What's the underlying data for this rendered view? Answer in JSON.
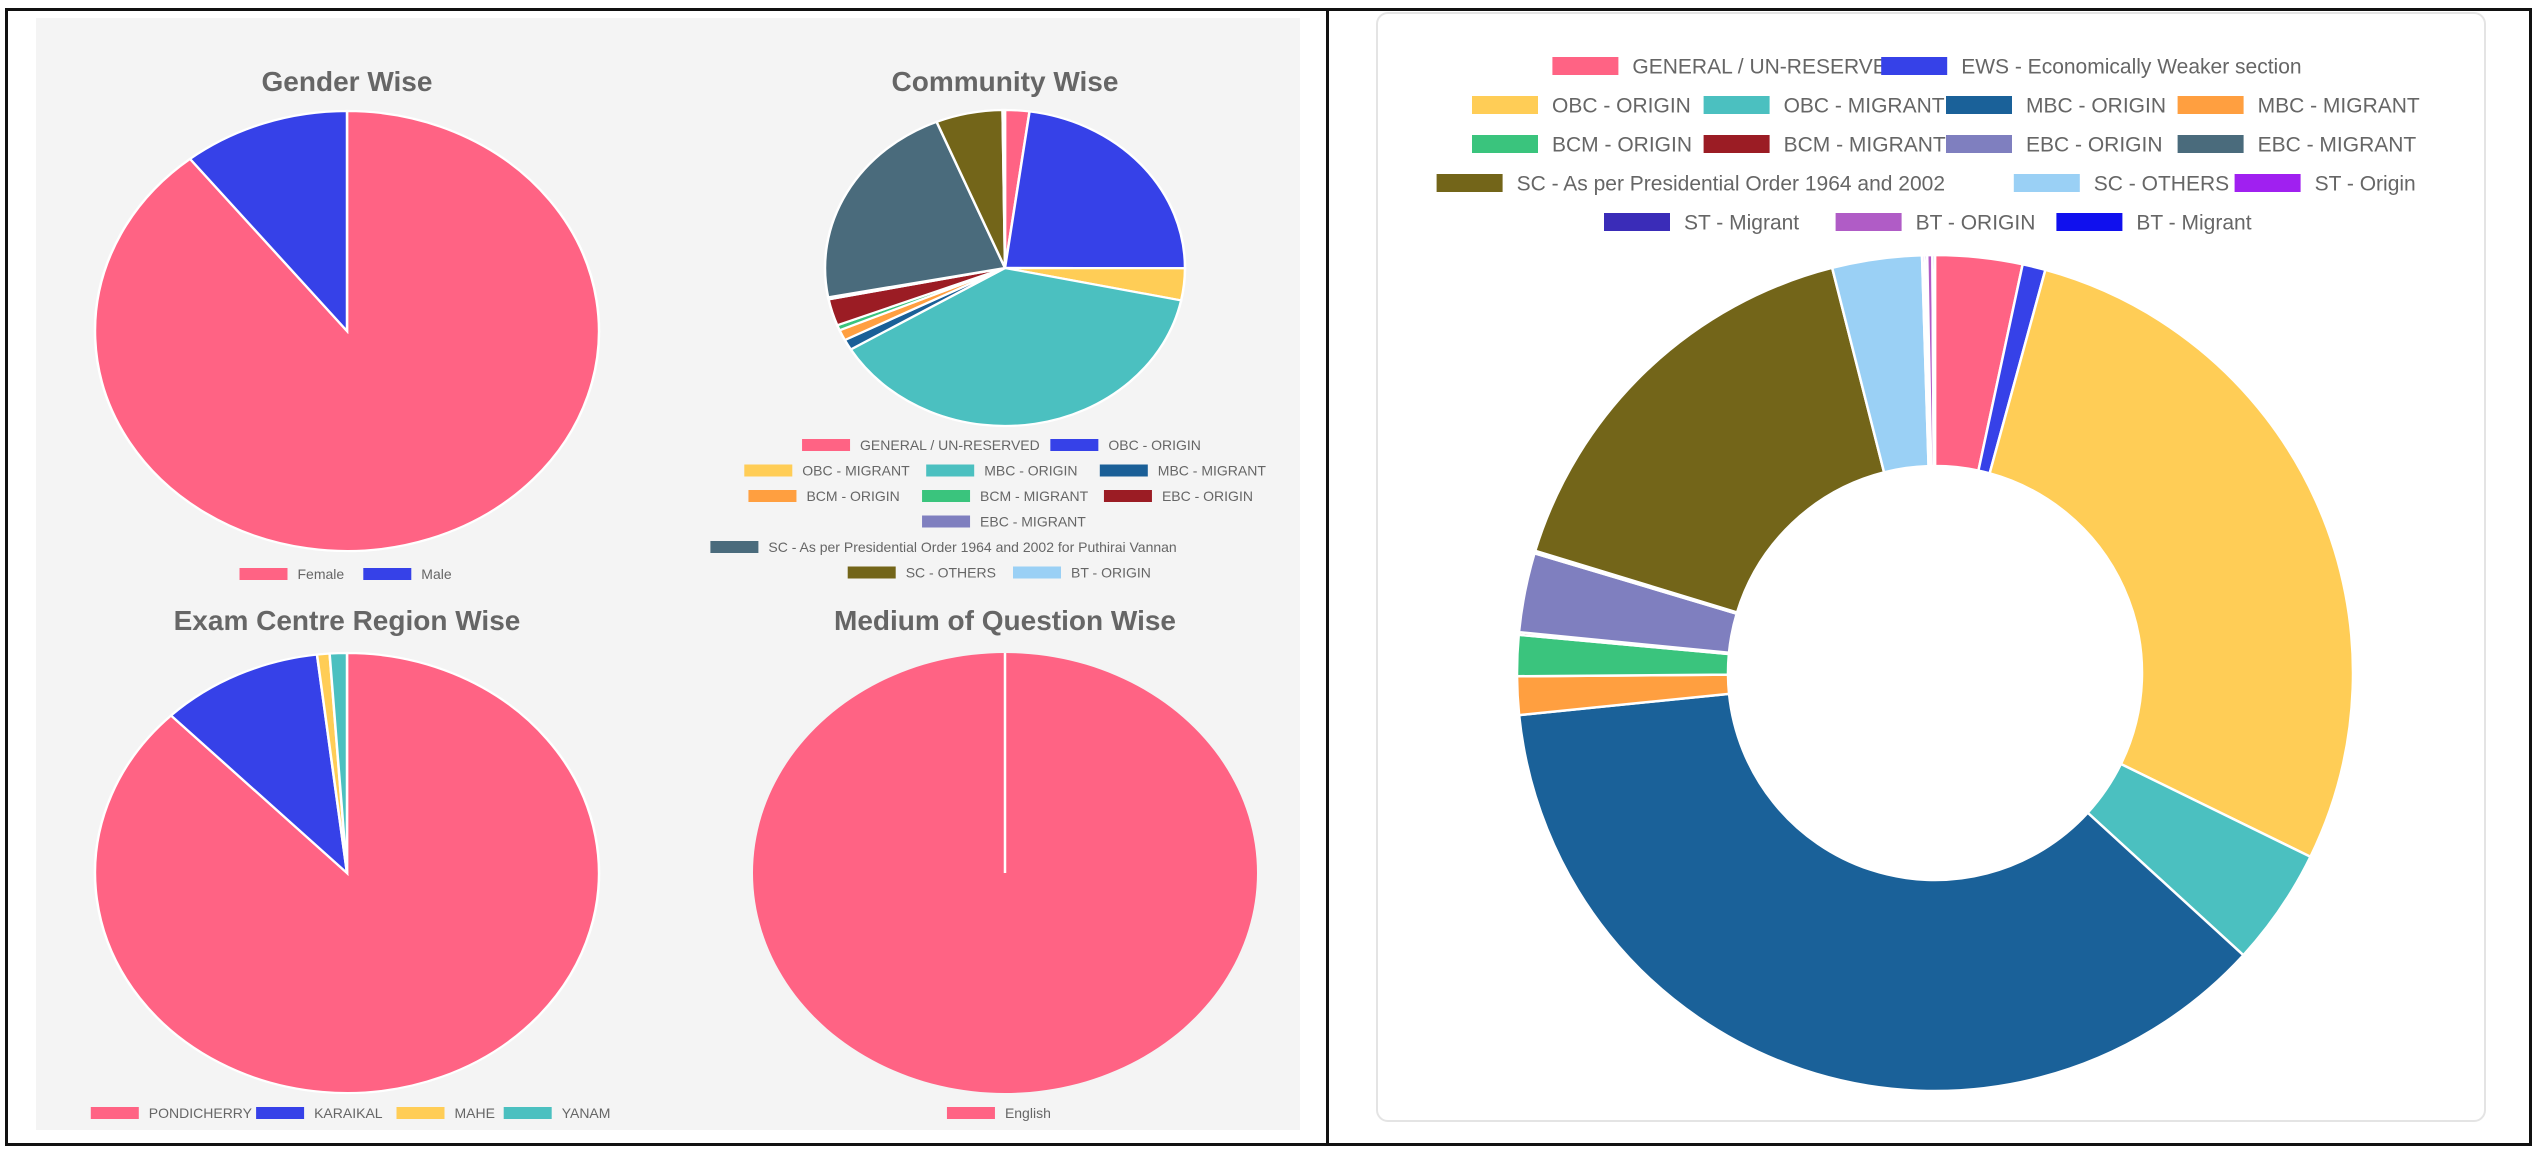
{
  "left_panel": {
    "charts": [
      {
        "id": "gender",
        "type": "pie",
        "title": "Gender Wise",
        "labels": [
          "Female",
          "Male"
        ],
        "colors": [
          "#ff6384",
          "#3641e8"
        ],
        "values": [
          89.3,
          10.7
        ]
      },
      {
        "id": "community",
        "type": "pie",
        "title": "Community Wise",
        "labels": [
          "GENERAL / UN-RESERVED",
          "OBC - ORIGIN",
          "OBC - MIGRANT",
          "MBC - ORIGIN",
          "MBC - MIGRANT",
          "BCM - ORIGIN",
          "BCM - MIGRANT",
          "EBC - ORIGIN",
          "EBC - MIGRANT",
          "SC - As per Presidential Order 1964 and 2002 for Puthirai Vannan",
          "SC - OTHERS",
          "BT - ORIGIN"
        ],
        "colors": [
          "#ff6384",
          "#3641e8",
          "#ffcd56",
          "#4bc0c0",
          "#1a5f97",
          "#ff9f40",
          "#3ac47d",
          "#9b1c24",
          "#7f7fbf",
          "#4a6b7c",
          "#736519",
          "#9ad0f5"
        ],
        "values": [
          2.0,
          21.0,
          3.0,
          35.0,
          1.0,
          1.0,
          0.5,
          2.5,
          0.2,
          20.0,
          5.5,
          0.2
        ]
      },
      {
        "id": "region",
        "type": "pie",
        "title": "Exam Centre Region Wise",
        "labels": [
          "PONDICHERRY",
          "KARAIKAL",
          "MAHE",
          "YANAM"
        ],
        "colors": [
          "#ff6384",
          "#3641e8",
          "#ffcd56",
          "#4bc0c0"
        ],
        "values": [
          87.7,
          10.4,
          0.8,
          1.1
        ]
      },
      {
        "id": "medium",
        "type": "pie",
        "title": "Medium of Question Wise",
        "labels": [
          "English"
        ],
        "colors": [
          "#ff6384"
        ],
        "values": [
          100
        ]
      }
    ]
  },
  "chart_data": {
    "type": "pie",
    "subtype": "doughnut",
    "legend_position": "top",
    "labels": [
      "GENERAL / UN-RESERVED",
      "EWS - Economically Weaker section",
      "OBC - ORIGIN",
      "OBC - MIGRANT",
      "MBC - ORIGIN",
      "MBC - MIGRANT",
      "BCM - ORIGIN",
      "BCM - MIGRANT",
      "EBC - ORIGIN",
      "EBC - MIGRANT",
      "SC - As per Presidential Order 1964 and 2002",
      "SC - OTHERS",
      "ST - Origin",
      "ST - Migrant",
      "BT - ORIGIN",
      "BT - Migrant"
    ],
    "colors": [
      "#ff6384",
      "#3641e8",
      "#ffcd56",
      "#4bc0c0",
      "#1a6199",
      "#ff9f40",
      "#3ac47d",
      "#9b1c24",
      "#7f7fbf",
      "#4a6b7c",
      "#736519",
      "#9ad0f5",
      "#a020f0",
      "#3a2cb8",
      "#b05cc6",
      "#1010ee"
    ],
    "values": [
      3.4,
      0.9,
      28.3,
      4.6,
      37.0,
      1.5,
      1.6,
      0.1,
      3.1,
      0.1,
      16.5,
      3.5,
      0.1,
      0.1,
      0.2,
      0.1
    ]
  }
}
